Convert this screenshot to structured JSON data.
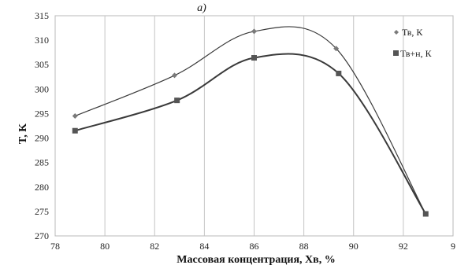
{
  "panel_label": "a)",
  "chart_data": {
    "type": "scatter",
    "title": "",
    "xlabel": "Массовая концентрация, Хв, %",
    "ylabel": "T, K",
    "xlim": [
      78,
      94
    ],
    "ylim": [
      270,
      315
    ],
    "x_ticks": [
      "78",
      "80",
      "82",
      "84",
      "86",
      "88",
      "90",
      "92",
      "9"
    ],
    "y_ticks": [
      "270",
      "275",
      "280",
      "285",
      "290",
      "295",
      "300",
      "305",
      "310",
      "315"
    ],
    "grid": "vertical",
    "legend_position": "right",
    "series": [
      {
        "name": "Тв, К",
        "marker": "diamond",
        "color": "#7a7a7a",
        "x": [
          78.8,
          82.8,
          86.0,
          89.3,
          92.9
        ],
        "y": [
          294.5,
          302.8,
          311.8,
          308.3,
          274.5
        ]
      },
      {
        "name": "Тв+н, К",
        "marker": "square",
        "color": "#555555",
        "x": [
          78.8,
          82.9,
          86.0,
          89.4,
          92.9
        ],
        "y": [
          291.5,
          297.7,
          306.4,
          303.2,
          274.5
        ]
      }
    ]
  }
}
